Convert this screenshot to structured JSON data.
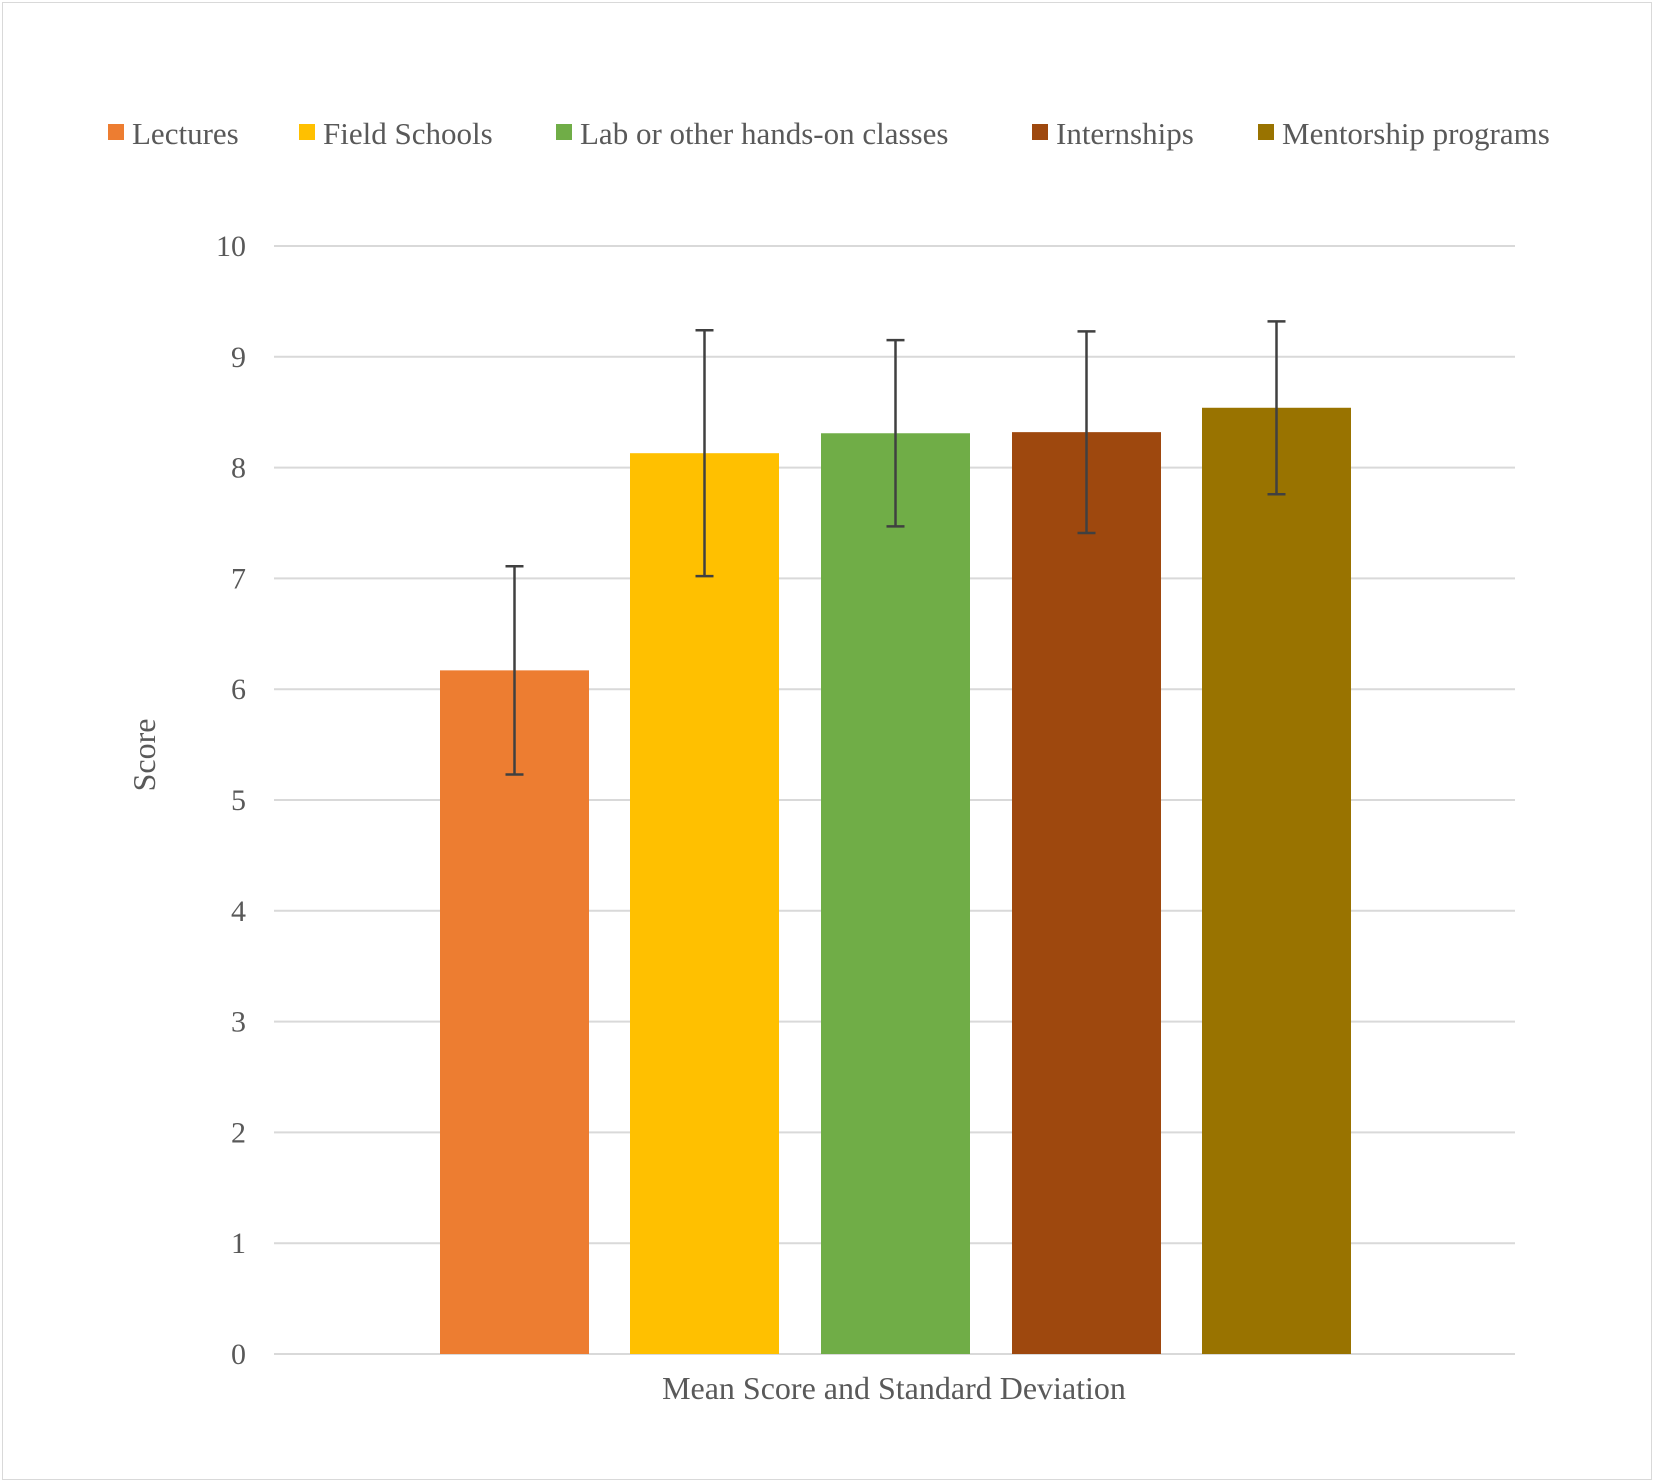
{
  "chart_data": {
    "type": "bar",
    "title": "",
    "xlabel": "Mean Score and Standard Deviation",
    "ylabel": "Score",
    "ylim": [
      0,
      10
    ],
    "yticks": [
      0,
      1,
      2,
      3,
      4,
      5,
      6,
      7,
      8,
      9,
      10
    ],
    "grid": true,
    "legend_position": "top",
    "categories": [
      "Mean Score and Standard Deviation"
    ],
    "series": [
      {
        "name": "Lectures",
        "values": [
          6.17
        ],
        "error": [
          0.94
        ],
        "color": "#ED7D31"
      },
      {
        "name": "Field Schools",
        "values": [
          8.13
        ],
        "error": [
          1.11
        ],
        "color": "#FFC000"
      },
      {
        "name": "Lab or other hands-on classes",
        "values": [
          8.31
        ],
        "error": [
          0.84
        ],
        "color": "#70AD47"
      },
      {
        "name": "Internships",
        "values": [
          8.32
        ],
        "error": [
          0.91
        ],
        "color": "#9E480E"
      },
      {
        "name": "Mentorship programs",
        "values": [
          8.54
        ],
        "error": [
          0.78
        ],
        "color": "#997300"
      }
    ]
  }
}
